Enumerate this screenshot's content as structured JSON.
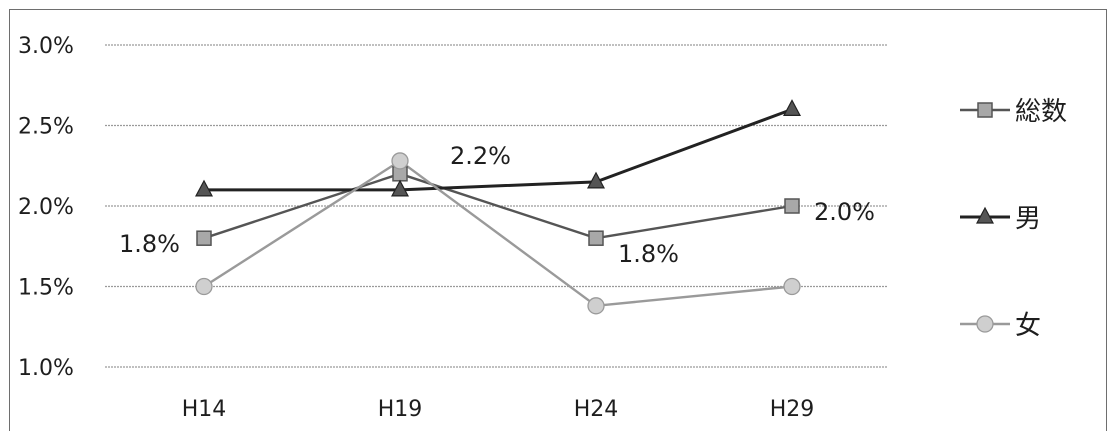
{
  "chart_data": {
    "type": "line",
    "categories": [
      "H14",
      "H19",
      "H24",
      "H29"
    ],
    "y_ticks": [
      "3.0%",
      "2.5%",
      "2.0%",
      "1.5%",
      "1.0%"
    ],
    "ylim": [
      1.0,
      3.0
    ],
    "grid": true,
    "legend_position": "right",
    "series": [
      {
        "name": "総数",
        "values": [
          1.8,
          2.2,
          1.8,
          2.0
        ],
        "color": "#555555",
        "marker": "square",
        "data_labels": [
          "1.8%",
          "2.2%",
          "1.8%",
          "2.0%"
        ]
      },
      {
        "name": "男",
        "values": [
          2.1,
          2.1,
          2.15,
          2.6
        ],
        "color": "#222222",
        "marker": "triangle"
      },
      {
        "name": "女",
        "values": [
          1.5,
          2.28,
          1.38,
          1.5
        ],
        "color": "#9a9a9a",
        "marker": "circle"
      }
    ]
  }
}
